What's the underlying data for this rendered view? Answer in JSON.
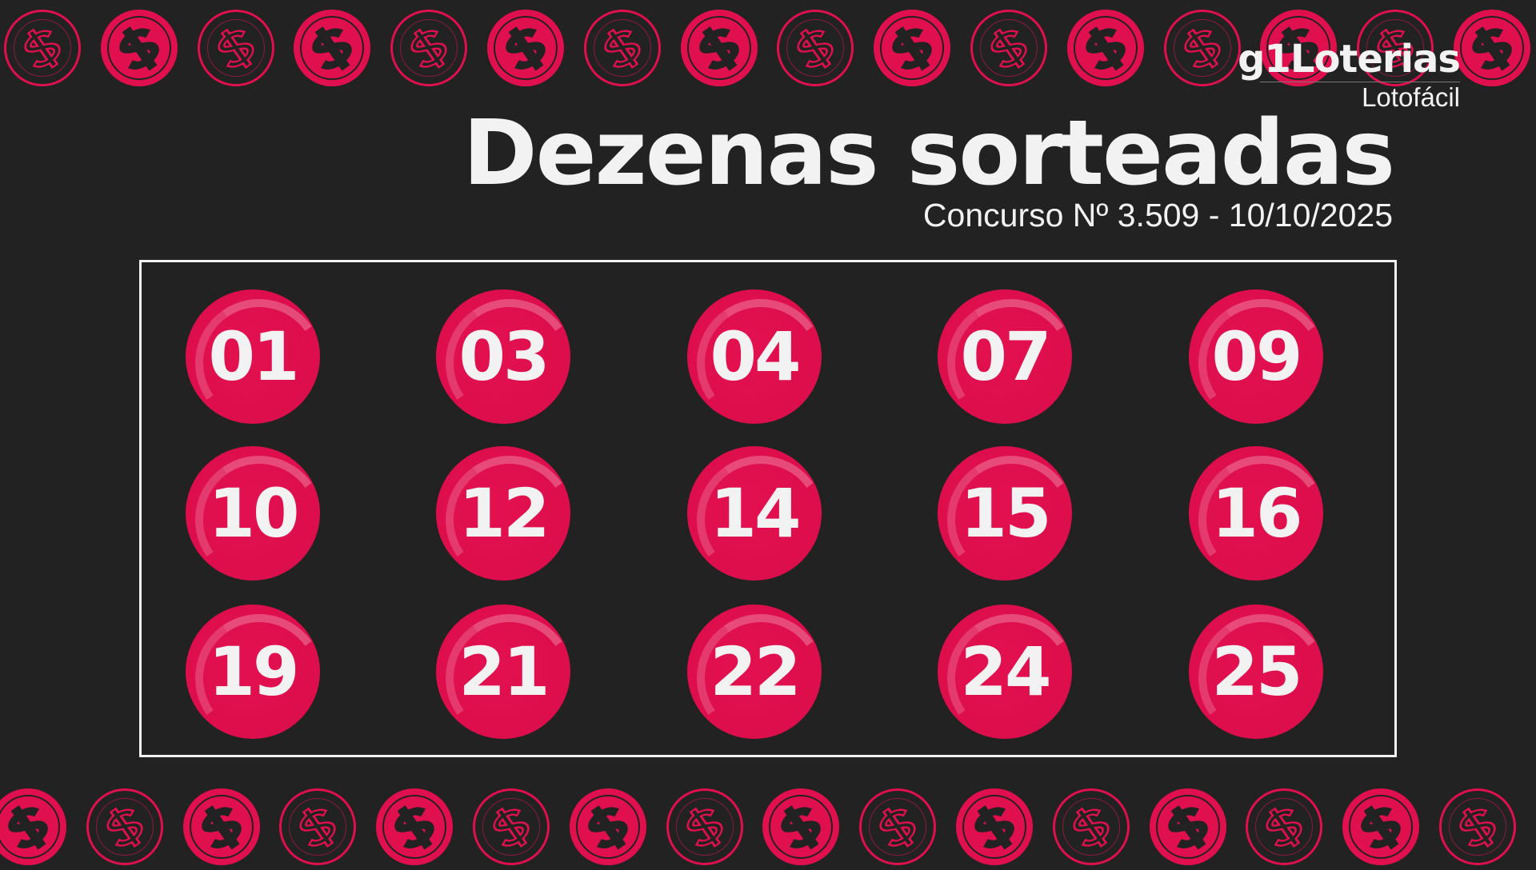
{
  "brand": {
    "name": "g1Loterias",
    "game": "Lotofácil"
  },
  "title": "Dezenas sorteadas",
  "subtitle": "Concurso Nº 3.509 - 10/10/2025",
  "numbers": [
    "01",
    "03",
    "04",
    "07",
    "09",
    "10",
    "12",
    "14",
    "15",
    "16",
    "19",
    "21",
    "22",
    "24",
    "25"
  ],
  "colors": {
    "background": "#222222",
    "accent": "#e0104e",
    "text": "#f2f2f2"
  },
  "decoration_icon": "dollar-coin-icon"
}
